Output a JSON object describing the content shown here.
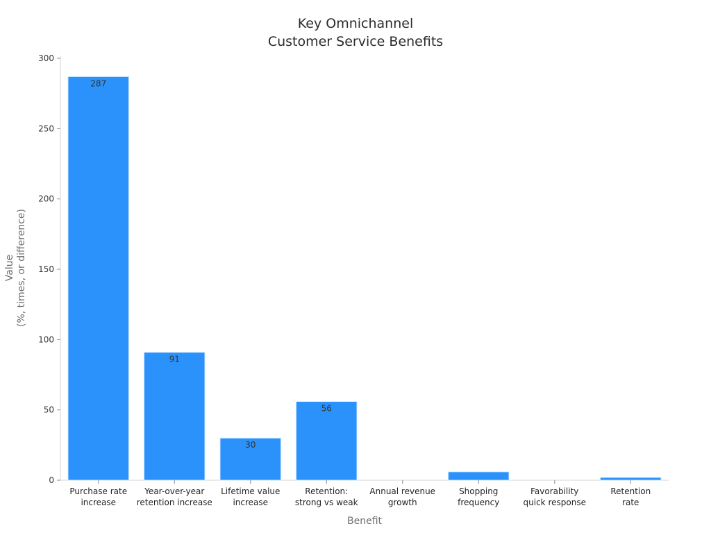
{
  "chart_data": {
    "type": "bar",
    "title": [
      "Key Omnichannel",
      "Customer Service Benefits"
    ],
    "xlabel": "Benefit",
    "ylabel": [
      "Value",
      "(%, times, or difference)"
    ],
    "categories": [
      [
        "Purchase rate",
        "increase"
      ],
      [
        "Year-over-year",
        "retention increase"
      ],
      [
        "Lifetime value",
        "increase"
      ],
      [
        "Retention:",
        "strong vs weak"
      ],
      [
        "Annual revenue",
        "growth"
      ],
      [
        "Shopping",
        "frequency"
      ],
      [
        "Favorability",
        "quick response"
      ],
      [
        "Retention",
        "rate"
      ]
    ],
    "values": [
      287,
      91,
      30,
      56,
      0,
      6,
      0,
      2
    ],
    "value_labels": [
      "287",
      "91",
      "30",
      "56",
      "",
      "",
      "",
      ""
    ],
    "ylim": [
      0,
      300
    ],
    "yticks": [
      0,
      50,
      100,
      150,
      200,
      250,
      300
    ],
    "grid": false,
    "bar_color": "#2b92fb",
    "bar_edge_color": "#d9ecff"
  }
}
